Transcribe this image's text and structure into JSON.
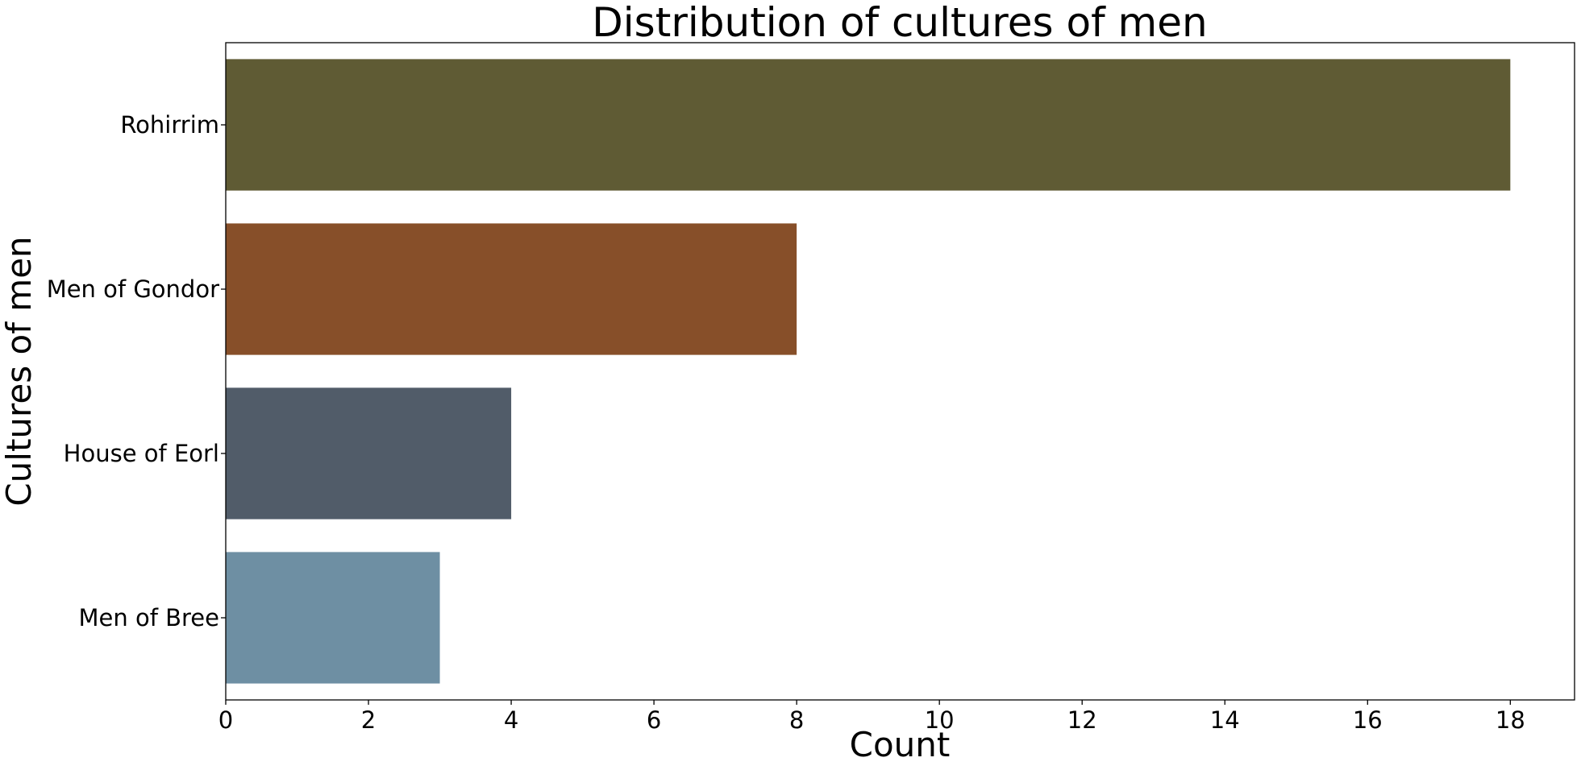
{
  "chart_data": {
    "type": "bar",
    "orientation": "horizontal",
    "title": "Distribution of cultures of men",
    "xlabel": "Count",
    "ylabel": "Cultures of men",
    "categories": [
      "Rohirrim",
      "Men of Gondor",
      "House of Eorl",
      "Men of Bree"
    ],
    "values": [
      18,
      8,
      4,
      3
    ],
    "colors": [
      "#5f5b34",
      "#874f29",
      "#515c69",
      "#6e8fa3"
    ],
    "xlim": [
      0,
      18.9
    ],
    "xticks": [
      0,
      2,
      4,
      6,
      8,
      10,
      12,
      14,
      16,
      18
    ],
    "grid": false,
    "legend": "none"
  }
}
